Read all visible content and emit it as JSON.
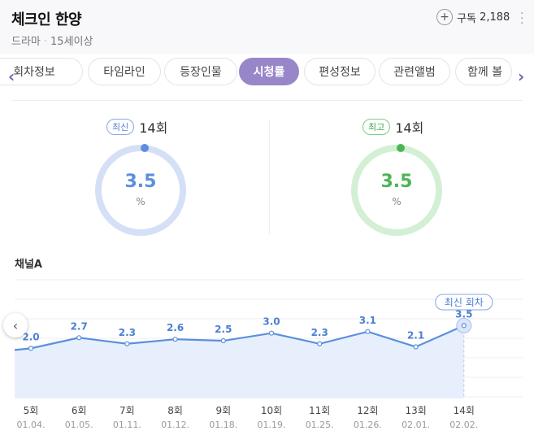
{
  "header": {
    "title": "체크인 한양",
    "genre": "드라마",
    "rating": "15세이상",
    "subscribe_label": "구독",
    "subscribe_count": "2,188"
  },
  "tabs": [
    {
      "label": "회차정보",
      "active": false
    },
    {
      "label": "타임라인",
      "active": false
    },
    {
      "label": "등장인물",
      "active": false
    },
    {
      "label": "시청률",
      "active": true
    },
    {
      "label": "편성정보",
      "active": false
    },
    {
      "label": "관련앨범",
      "active": false
    },
    {
      "label": "함께 볼",
      "active": false
    }
  ],
  "latest": {
    "badge": "최신",
    "episode": "14회",
    "value": "3.5",
    "unit": "%"
  },
  "highest": {
    "badge": "최고",
    "episode": "14회",
    "value": "3.5",
    "unit": "%"
  },
  "colors": {
    "accent": "#9986c9",
    "blue": "#5b8fde",
    "green": "#4cb455"
  },
  "chart_data": {
    "type": "area",
    "channel": "채널A",
    "categories": [
      "5회",
      "6회",
      "7회",
      "8회",
      "9회",
      "10회",
      "11회",
      "12회",
      "13회",
      "14회"
    ],
    "dates": [
      "01.04.",
      "01.05.",
      "01.11.",
      "01.12.",
      "01.18.",
      "01.19.",
      "01.25.",
      "01.26.",
      "02.01.",
      "02.02."
    ],
    "values": [
      2.0,
      2.7,
      2.3,
      2.6,
      2.5,
      3.0,
      2.3,
      3.1,
      2.1,
      3.5
    ],
    "value_labels": [
      "2.0",
      "2.7",
      "2.3",
      "2.6",
      "2.5",
      "3.0",
      "2.3",
      "3.1",
      "2.1",
      "3.5"
    ],
    "latest_tooltip": "최신 회차",
    "ylim": [
      -1.3,
      7.0
    ]
  }
}
